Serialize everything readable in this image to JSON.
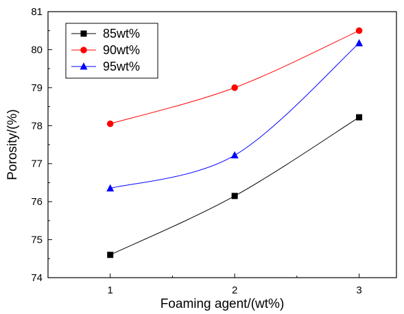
{
  "chart_data": {
    "type": "line",
    "xlabel": "Foaming agent/(wt%)",
    "ylabel": "Porosity/(%)",
    "x": [
      1,
      2,
      3
    ],
    "xticks": [
      1,
      2,
      3
    ],
    "xlim": [
      0.5,
      3.3
    ],
    "ylim": [
      74,
      81
    ],
    "yticks": [
      74,
      75,
      76,
      77,
      78,
      79,
      80,
      81
    ],
    "legend_position": "top-left",
    "smoothed": true,
    "series": [
      {
        "name": "85wt%",
        "values": [
          74.6,
          76.15,
          78.22
        ],
        "color": "#000000",
        "marker": "square"
      },
      {
        "name": "90wt%",
        "values": [
          78.05,
          79.0,
          80.5
        ],
        "color": "#ff0000",
        "marker": "circle"
      },
      {
        "name": "95wt%",
        "values": [
          76.35,
          77.22,
          80.17
        ],
        "color": "#0000ff",
        "marker": "triangle"
      }
    ]
  }
}
